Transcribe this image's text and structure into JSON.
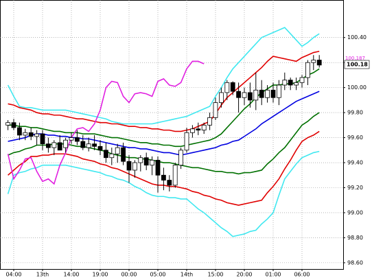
{
  "chart_data": {
    "type": "candlestick",
    "categories": [
      null,
      "04:00",
      null,
      null,
      null,
      null,
      "13th",
      null,
      null,
      null,
      null,
      "14:00",
      null,
      null,
      null,
      null,
      "19:00",
      null,
      null,
      null,
      null,
      "00:00",
      null,
      null,
      null,
      null,
      "05:00",
      null,
      null,
      null,
      null,
      "14th",
      null,
      null,
      null,
      null,
      "15:00",
      null,
      null,
      null,
      null,
      "20:00",
      null,
      null,
      null,
      null,
      "01:00",
      null,
      null,
      null,
      null,
      "06:00",
      null,
      null,
      null
    ],
    "open": [
      99.7,
      99.72,
      99.68,
      99.62,
      99.64,
      99.61,
      99.63,
      99.55,
      99.52,
      99.56,
      99.52,
      99.58,
      99.6,
      99.57,
      99.52,
      99.55,
      99.53,
      99.5,
      99.44,
      99.47,
      99.52,
      99.41,
      99.34,
      99.4,
      99.44,
      99.38,
      99.42,
      99.3,
      99.26,
      99.22,
      99.38,
      99.5,
      99.64,
      99.67,
      99.66,
      99.7,
      99.76,
      99.88,
      99.96,
      100.04,
      99.97,
      99.92,
      99.96,
      99.9,
      99.98,
      99.92,
      99.98,
      99.92,
      100.02,
      100.06,
      100.02,
      100.04,
      100.08,
      100.2,
      100.22
    ],
    "high": [
      99.74,
      99.75,
      99.72,
      99.67,
      99.68,
      99.66,
      99.66,
      99.6,
      99.58,
      99.62,
      99.6,
      99.64,
      99.66,
      99.62,
      99.6,
      99.62,
      99.58,
      99.56,
      99.52,
      99.55,
      99.56,
      99.46,
      99.42,
      99.46,
      99.48,
      99.45,
      99.45,
      99.36,
      99.3,
      99.4,
      99.52,
      99.68,
      99.7,
      99.72,
      99.72,
      99.8,
      99.92,
      100.0,
      100.06,
      100.05,
      100.04,
      100.0,
      100.04,
      100.12,
      100.06,
      100.02,
      100.04,
      100.06,
      100.12,
      100.08,
      100.08,
      100.1,
      100.22,
      100.26,
      100.26
    ],
    "low": [
      99.66,
      99.66,
      99.58,
      99.58,
      99.58,
      99.54,
      99.5,
      99.48,
      99.46,
      99.52,
      99.48,
      99.55,
      99.54,
      99.5,
      99.49,
      99.5,
      99.46,
      99.4,
      99.38,
      99.4,
      99.38,
      99.24,
      99.28,
      99.33,
      99.34,
      99.3,
      99.16,
      99.18,
      99.17,
      99.2,
      99.35,
      99.48,
      99.6,
      99.62,
      99.63,
      99.66,
      99.74,
      99.84,
      99.9,
      99.94,
      99.8,
      99.86,
      99.84,
      99.82,
      99.86,
      99.88,
      99.88,
      99.86,
      99.98,
      99.98,
      99.98,
      100.0,
      100.02,
      100.14,
      100.16
    ],
    "close": [
      99.72,
      99.68,
      99.62,
      99.64,
      99.61,
      99.63,
      99.55,
      99.52,
      99.56,
      99.5,
      99.58,
      99.6,
      99.57,
      99.52,
      99.55,
      99.53,
      99.5,
      99.44,
      99.47,
      99.52,
      99.41,
      99.34,
      99.4,
      99.44,
      99.38,
      99.42,
      99.3,
      99.26,
      99.22,
      99.38,
      99.5,
      99.64,
      99.67,
      99.66,
      99.7,
      99.76,
      99.88,
      99.96,
      100.04,
      99.97,
      99.92,
      99.96,
      99.9,
      99.98,
      99.92,
      99.98,
      99.92,
      100.02,
      100.06,
      100.02,
      100.04,
      100.08,
      100.2,
      100.22,
      100.18
    ],
    "series": [
      {
        "color": "#40e8f0",
        "values": [
          100.02,
          99.93,
          99.85,
          99.84,
          99.84,
          99.83,
          99.82,
          99.82,
          99.82,
          99.82,
          99.82,
          99.81,
          99.8,
          99.79,
          99.78,
          99.77,
          99.76,
          99.75,
          99.73,
          99.72,
          99.71,
          99.71,
          99.71,
          99.71,
          99.71,
          99.71,
          99.72,
          99.73,
          99.74,
          99.75,
          99.76,
          99.77,
          99.79,
          99.81,
          99.83,
          99.85,
          99.93,
          100.0,
          100.08,
          100.15,
          100.2,
          100.25,
          100.3,
          100.35,
          100.4,
          100.42,
          100.44,
          100.46,
          100.48,
          100.43,
          100.38,
          100.33,
          100.36,
          100.4,
          100.43
        ]
      },
      {
        "color": "#e00000",
        "values": [
          99.87,
          99.86,
          99.84,
          99.83,
          99.82,
          99.8,
          99.79,
          99.79,
          99.78,
          99.78,
          99.77,
          99.76,
          99.75,
          99.75,
          99.74,
          99.73,
          99.72,
          99.72,
          99.71,
          99.71,
          99.7,
          99.69,
          99.69,
          99.68,
          99.68,
          99.67,
          99.67,
          99.66,
          99.66,
          99.65,
          99.65,
          99.66,
          99.67,
          99.69,
          99.71,
          99.73,
          99.79,
          99.86,
          99.92,
          99.96,
          100.0,
          100.04,
          100.08,
          100.12,
          100.16,
          100.21,
          100.25,
          100.24,
          100.23,
          100.22,
          100.21,
          100.24,
          100.26,
          100.28,
          100.29
        ]
      },
      {
        "color": "#007000",
        "values": [
          99.7,
          99.7,
          99.69,
          99.69,
          99.68,
          99.68,
          99.67,
          99.66,
          99.65,
          99.65,
          99.64,
          99.64,
          99.64,
          99.63,
          99.63,
          99.63,
          99.62,
          99.61,
          99.6,
          99.6,
          99.59,
          99.58,
          99.57,
          99.56,
          99.56,
          99.55,
          99.55,
          99.54,
          99.54,
          99.53,
          99.53,
          99.54,
          99.55,
          99.56,
          99.57,
          99.58,
          99.6,
          99.63,
          99.68,
          99.73,
          99.78,
          99.83,
          99.87,
          99.92,
          99.96,
          99.99,
          100.02,
          100.02,
          100.03,
          100.03,
          100.04,
          100.07,
          100.1,
          100.12,
          100.15
        ]
      },
      {
        "color": "#0000e0",
        "values": [
          99.57,
          99.58,
          99.59,
          99.6,
          99.62,
          99.63,
          99.63,
          99.62,
          99.62,
          99.61,
          99.61,
          99.6,
          99.6,
          99.59,
          99.59,
          99.58,
          99.57,
          99.56,
          99.55,
          99.54,
          99.53,
          99.52,
          99.52,
          99.51,
          99.51,
          99.5,
          99.49,
          99.48,
          99.48,
          99.47,
          99.46,
          99.47,
          99.48,
          99.49,
          99.5,
          99.51,
          99.52,
          99.54,
          99.55,
          99.57,
          99.58,
          99.61,
          99.64,
          99.67,
          99.71,
          99.74,
          99.77,
          99.8,
          99.83,
          99.86,
          99.89,
          99.91,
          99.93,
          99.95,
          99.97
        ]
      },
      {
        "color": "#007000",
        "values": [
          99.46,
          99.48,
          99.49,
          99.51,
          99.52,
          99.54,
          99.54,
          99.54,
          99.55,
          99.55,
          99.55,
          99.54,
          99.53,
          99.53,
          99.52,
          99.51,
          99.5,
          99.49,
          99.47,
          99.46,
          99.45,
          99.44,
          99.44,
          99.43,
          99.43,
          99.42,
          99.41,
          99.4,
          99.4,
          99.39,
          99.38,
          99.37,
          99.36,
          99.36,
          99.35,
          99.34,
          99.33,
          99.33,
          99.32,
          99.32,
          99.31,
          99.32,
          99.32,
          99.33,
          99.34,
          99.39,
          99.43,
          99.48,
          99.52,
          99.58,
          99.64,
          99.7,
          99.73,
          99.77,
          99.8
        ]
      },
      {
        "color": "#e00000",
        "values": [
          99.3,
          99.34,
          99.38,
          99.41,
          99.45,
          99.45,
          99.46,
          99.46,
          99.47,
          99.47,
          99.47,
          99.46,
          99.45,
          99.43,
          99.42,
          99.41,
          99.39,
          99.38,
          99.36,
          99.35,
          99.33,
          99.31,
          99.29,
          99.27,
          99.25,
          99.23,
          99.22,
          99.22,
          99.21,
          99.21,
          99.2,
          99.19,
          99.17,
          99.16,
          99.14,
          99.13,
          99.11,
          99.1,
          99.08,
          99.07,
          99.06,
          99.07,
          99.08,
          99.09,
          99.1,
          99.16,
          99.21,
          99.27,
          99.35,
          99.42,
          99.5,
          99.57,
          99.6,
          99.62,
          99.65
        ]
      },
      {
        "color": "#40e8f0",
        "values": [
          99.15,
          99.3,
          99.32,
          99.33,
          99.35,
          99.36,
          99.38,
          99.38,
          99.38,
          99.38,
          99.38,
          99.37,
          99.36,
          99.35,
          99.34,
          99.33,
          99.32,
          99.3,
          99.29,
          99.27,
          99.26,
          99.24,
          99.21,
          99.19,
          99.16,
          99.14,
          99.13,
          99.13,
          99.12,
          99.12,
          99.11,
          99.11,
          99.07,
          99.03,
          99.0,
          98.96,
          98.92,
          98.88,
          98.85,
          98.81,
          98.82,
          98.83,
          98.85,
          98.86,
          98.91,
          98.95,
          99.0,
          99.14,
          99.27,
          99.33,
          99.39,
          99.44,
          99.46,
          99.48,
          99.49
        ]
      },
      {
        "color": "#e020e0",
        "values": [
          99.47,
          99.27,
          99.34,
          99.43,
          99.44,
          99.33,
          99.25,
          99.27,
          99.23,
          99.38,
          99.48,
          99.6,
          99.67,
          99.68,
          99.65,
          99.71,
          99.82,
          100.0,
          100.05,
          100.04,
          99.93,
          99.88,
          99.95,
          99.96,
          99.95,
          99.93,
          100.05,
          100.07,
          100.02,
          100.01,
          100.04,
          100.15,
          100.21,
          100.21,
          100.19,
          null,
          null,
          null,
          null,
          null,
          null,
          null,
          null,
          null,
          null,
          null,
          null,
          null,
          null,
          null,
          null,
          null,
          null,
          null,
          null
        ]
      }
    ],
    "up_color": "#ffffff",
    "down_color": "#000000",
    "ylim": [
      98.55,
      100.7
    ],
    "yticks": [
      {
        "value": 98.6,
        "label": "98.60"
      },
      {
        "value": 98.8,
        "label": "98.80"
      },
      {
        "value": 99.0,
        "label": "99.00"
      },
      {
        "value": 99.2,
        "label": "99.20"
      },
      {
        "value": 99.4,
        "label": "99.40"
      },
      {
        "value": 99.6,
        "label": "99.60"
      },
      {
        "value": 99.8,
        "label": "99.80"
      },
      {
        "value": 100.0,
        "label": "100.00"
      },
      {
        "value": 100.2,
        "label": "100.20"
      },
      {
        "value": 100.4,
        "label": "100.40"
      }
    ],
    "grid": true,
    "marker_label": "100.187",
    "last_label": "100.18"
  }
}
